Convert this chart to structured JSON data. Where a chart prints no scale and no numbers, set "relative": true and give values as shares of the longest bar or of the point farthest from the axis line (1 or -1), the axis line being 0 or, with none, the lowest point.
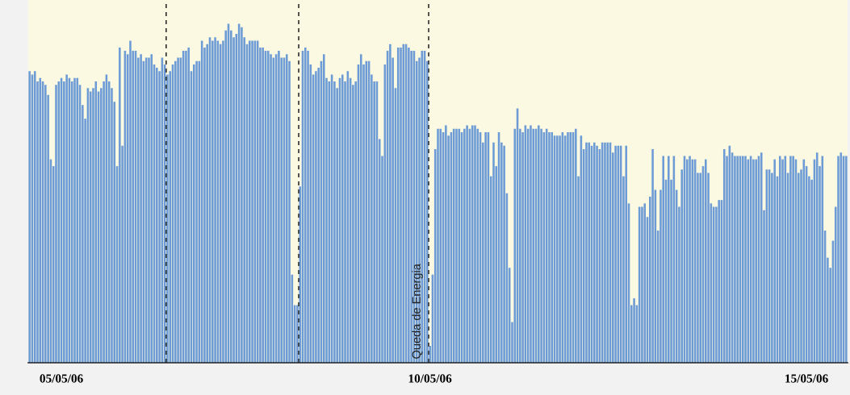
{
  "chart_data": {
    "type": "bar",
    "relative": true,
    "color": "#6d9bd6",
    "categories": [
      null,
      null,
      null,
      null,
      null,
      null,
      null,
      null,
      null,
      null,
      null,
      null,
      "05/05/06",
      null,
      null,
      null,
      null,
      null,
      null,
      null,
      null,
      null,
      null,
      null,
      null,
      null,
      null,
      null,
      null,
      null,
      null,
      null,
      null,
      null,
      null,
      null,
      null,
      null,
      null,
      null,
      null,
      null,
      null,
      null,
      null,
      null,
      null,
      null,
      null,
      null,
      null,
      null,
      null,
      null,
      null,
      null,
      null,
      null,
      null,
      null,
      null,
      null,
      null,
      null,
      null,
      null,
      null,
      null,
      null,
      null,
      null,
      null,
      null,
      null,
      null,
      null,
      null,
      null,
      null,
      null,
      null,
      null,
      null,
      null,
      null,
      null,
      null,
      null,
      null,
      null,
      null,
      null,
      null,
      null,
      null,
      null,
      null,
      null,
      null,
      null,
      null,
      null,
      null,
      null,
      null,
      null,
      null,
      null,
      null,
      null,
      null,
      null,
      null,
      null,
      null,
      null,
      null,
      null,
      null,
      null,
      null,
      null,
      null,
      null,
      null,
      null,
      null,
      null,
      null,
      null,
      null,
      null,
      null,
      null,
      null,
      null,
      null,
      null,
      null,
      null,
      null,
      null,
      null,
      null,
      null,
      null,
      null,
      null,
      null,
      null,
      null,
      "10/05/06",
      null,
      null,
      null,
      null,
      null,
      null,
      null,
      null,
      null,
      null,
      null,
      null,
      null,
      null,
      null,
      null,
      null,
      null,
      null,
      null,
      null,
      null,
      null,
      null,
      null,
      null,
      null,
      null,
      null,
      null,
      null,
      null,
      null,
      null,
      null,
      null,
      null,
      null,
      null,
      null,
      null,
      null,
      null,
      null,
      null,
      null,
      null,
      null,
      null,
      null,
      null,
      null,
      null,
      null,
      null,
      null,
      null,
      null,
      null,
      null,
      null,
      null,
      null,
      null,
      null,
      null,
      null,
      null,
      null,
      null,
      null,
      null,
      null,
      null,
      null,
      null,
      null,
      null,
      null,
      null,
      null,
      null,
      null,
      null,
      null,
      null,
      null,
      null,
      null,
      null,
      null,
      null,
      null,
      null,
      null,
      null,
      null,
      null,
      null,
      null,
      null,
      null,
      null,
      null,
      null,
      null,
      null,
      null,
      null,
      null,
      null,
      null,
      null,
      null,
      null,
      null,
      null,
      null,
      null,
      null,
      null,
      null,
      null,
      null,
      null,
      null,
      null,
      null,
      null,
      null,
      null,
      null,
      null,
      null,
      null,
      null,
      null,
      null,
      null,
      null,
      null,
      "15/05/06",
      null,
      null,
      null,
      null,
      null,
      null,
      null,
      null,
      null,
      null,
      null,
      null,
      null,
      null,
      null
    ],
    "values": [
      0.86,
      0.85,
      0.86,
      0.83,
      0.84,
      0.83,
      0.82,
      0.79,
      0.6,
      0.58,
      0.82,
      0.83,
      0.84,
      0.83,
      0.85,
      0.84,
      0.83,
      0.84,
      0.84,
      0.82,
      0.76,
      0.72,
      0.81,
      0.8,
      0.81,
      0.83,
      0.8,
      0.81,
      0.83,
      0.85,
      0.83,
      0.81,
      0.77,
      0.58,
      0.93,
      0.64,
      0.92,
      0.91,
      0.95,
      0.92,
      0.92,
      0.9,
      0.91,
      0.89,
      0.9,
      0.9,
      0.91,
      0.88,
      0.87,
      0.86,
      0.9,
      0.88,
      0.85,
      0.86,
      0.88,
      0.89,
      0.9,
      0.9,
      0.92,
      0.92,
      0.93,
      0.86,
      0.88,
      0.89,
      0.89,
      0.95,
      0.93,
      0.94,
      0.96,
      0.95,
      0.96,
      0.95,
      0.94,
      0.95,
      0.98,
      1.0,
      0.98,
      0.96,
      0.97,
      1.0,
      0.99,
      0.96,
      0.94,
      0.95,
      0.95,
      0.95,
      0.95,
      0.93,
      0.93,
      0.92,
      0.92,
      0.91,
      0.9,
      0.91,
      0.92,
      0.9,
      0.9,
      0.91,
      0.89,
      0.26,
      0.17,
      0.17,
      0.52,
      0.92,
      0.93,
      0.92,
      0.88,
      0.85,
      0.86,
      0.87,
      0.89,
      0.91,
      0.84,
      0.83,
      0.85,
      0.83,
      0.81,
      0.84,
      0.85,
      0.83,
      0.86,
      0.84,
      0.82,
      0.83,
      0.88,
      0.91,
      0.88,
      0.89,
      0.89,
      0.85,
      0.83,
      0.83,
      0.66,
      0.61,
      0.88,
      0.92,
      0.94,
      0.9,
      0.81,
      0.93,
      0.93,
      0.94,
      0.94,
      0.93,
      0.92,
      0.92,
      0.89,
      0.9,
      0.92,
      0.92,
      0.89,
      0.05,
      0.26,
      0.63,
      0.69,
      0.69,
      0.68,
      0.7,
      0.67,
      0.68,
      0.69,
      0.69,
      0.69,
      0.68,
      0.69,
      0.7,
      0.69,
      0.7,
      0.7,
      0.69,
      0.68,
      0.65,
      0.68,
      0.68,
      0.55,
      0.65,
      0.58,
      0.68,
      0.65,
      0.64,
      0.5,
      0.28,
      0.12,
      0.69,
      0.75,
      0.69,
      0.68,
      0.7,
      0.69,
      0.7,
      0.69,
      0.69,
      0.7,
      0.69,
      0.68,
      0.69,
      0.68,
      0.68,
      0.67,
      0.67,
      0.67,
      0.68,
      0.67,
      0.68,
      0.68,
      0.68,
      0.69,
      0.55,
      0.67,
      0.63,
      0.65,
      0.65,
      0.64,
      0.65,
      0.64,
      0.63,
      0.65,
      0.65,
      0.65,
      0.65,
      0.62,
      0.64,
      0.64,
      0.64,
      0.55,
      0.64,
      0.47,
      0.17,
      0.19,
      0.17,
      0.46,
      0.46,
      0.47,
      0.43,
      0.49,
      0.63,
      0.51,
      0.39,
      0.51,
      0.61,
      0.54,
      0.61,
      0.54,
      0.61,
      0.51,
      0.46,
      0.57,
      0.61,
      0.6,
      0.61,
      0.6,
      0.6,
      0.56,
      0.56,
      0.58,
      0.6,
      0.56,
      0.47,
      0.46,
      0.46,
      0.48,
      0.48,
      0.63,
      0.61,
      0.64,
      0.62,
      0.61,
      0.61,
      0.61,
      0.61,
      0.61,
      0.6,
      0.61,
      0.6,
      0.6,
      0.61,
      0.62,
      0.45,
      0.57,
      0.57,
      0.56,
      0.6,
      0.55,
      0.61,
      0.6,
      0.61,
      0.56,
      0.61,
      0.61,
      0.6,
      0.56,
      0.57,
      0.6,
      0.58,
      0.55,
      0.54,
      0.6,
      0.62,
      0.58,
      0.61,
      0.39,
      0.31,
      0.28,
      0.36,
      0.46,
      0.61,
      0.62,
      0.61,
      0.61
    ],
    "annotations": [
      "Queda de Energia"
    ]
  }
}
